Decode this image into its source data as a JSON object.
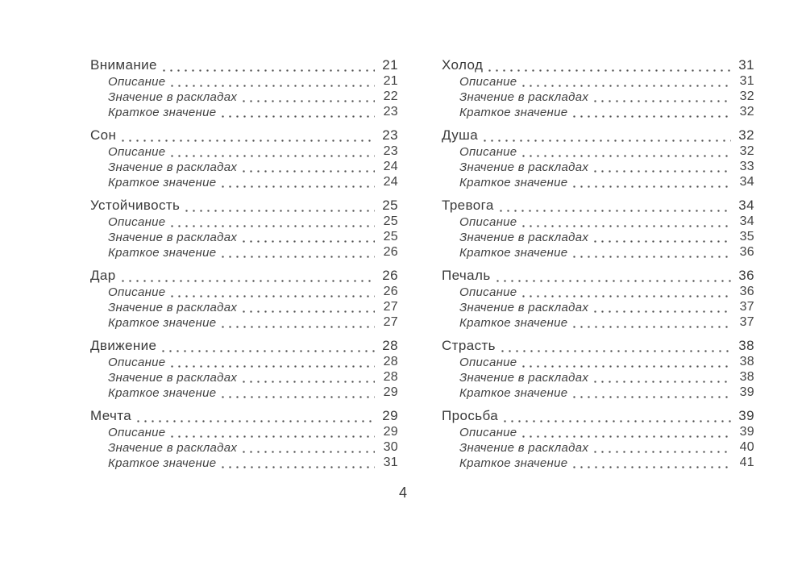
{
  "colors": {
    "background": "#ffffff",
    "text": "#3a3a3a",
    "leader_dots": "#4f4f4f"
  },
  "page": {
    "folio": "4"
  },
  "toc": {
    "columns": [
      {
        "entries": [
          {
            "title": "Внимание",
            "page": "21",
            "subitems": [
              {
                "label": "Описание",
                "page": "21"
              },
              {
                "label": "Значение в раскладах",
                "page": "22"
              },
              {
                "label": "Краткое значение",
                "page": "23"
              }
            ]
          },
          {
            "title": "Сон",
            "page": "23",
            "subitems": [
              {
                "label": "Описание",
                "page": "23"
              },
              {
                "label": "Значение в раскладах",
                "page": "24"
              },
              {
                "label": "Краткое значение",
                "page": "24"
              }
            ]
          },
          {
            "title": "Устойчивость",
            "page": "25",
            "subitems": [
              {
                "label": "Описание",
                "page": "25"
              },
              {
                "label": "Значение в раскладах",
                "page": "25"
              },
              {
                "label": "Краткое значение",
                "page": "26"
              }
            ]
          },
          {
            "title": "Дар",
            "page": "26",
            "subitems": [
              {
                "label": "Описание",
                "page": "26"
              },
              {
                "label": "Значение в раскладах",
                "page": "27"
              },
              {
                "label": "Краткое значение",
                "page": "27"
              }
            ]
          },
          {
            "title": "Движение",
            "page": "28",
            "subitems": [
              {
                "label": "Описание",
                "page": "28"
              },
              {
                "label": "Значение в раскладах",
                "page": "28"
              },
              {
                "label": "Краткое значение",
                "page": "29"
              }
            ]
          },
          {
            "title": "Мечта",
            "page": "29",
            "subitems": [
              {
                "label": "Описание",
                "page": "29"
              },
              {
                "label": "Значение в раскладах",
                "page": "30"
              },
              {
                "label": "Краткое значение",
                "page": "31"
              }
            ]
          }
        ]
      },
      {
        "entries": [
          {
            "title": "Холод",
            "page": "31",
            "subitems": [
              {
                "label": "Описание",
                "page": "31"
              },
              {
                "label": "Значение в раскладах",
                "page": "32"
              },
              {
                "label": "Краткое значение",
                "page": "32"
              }
            ]
          },
          {
            "title": "Душа",
            "page": "32",
            "subitems": [
              {
                "label": "Описание",
                "page": "32"
              },
              {
                "label": "Значение в раскладах",
                "page": "33"
              },
              {
                "label": "Краткое значение",
                "page": "34"
              }
            ]
          },
          {
            "title": "Тревога",
            "page": "34",
            "subitems": [
              {
                "label": "Описание",
                "page": "34"
              },
              {
                "label": "Значение в раскладах",
                "page": "35"
              },
              {
                "label": "Краткое значение",
                "page": "36"
              }
            ]
          },
          {
            "title": "Печаль",
            "page": "36",
            "subitems": [
              {
                "label": "Описание",
                "page": "36"
              },
              {
                "label": "Значение в раскладах",
                "page": "37"
              },
              {
                "label": "Краткое значение",
                "page": "37"
              }
            ]
          },
          {
            "title": "Страсть",
            "page": "38",
            "subitems": [
              {
                "label": "Описание",
                "page": "38"
              },
              {
                "label": "Значение в раскладах",
                "page": "38"
              },
              {
                "label": "Краткое значение",
                "page": "39"
              }
            ]
          },
          {
            "title": "Просьба",
            "page": "39",
            "subitems": [
              {
                "label": "Описание",
                "page": "39"
              },
              {
                "label": "Значение в раскладах",
                "page": "40"
              },
              {
                "label": "Краткое значение",
                "page": "41"
              }
            ]
          }
        ]
      }
    ]
  }
}
